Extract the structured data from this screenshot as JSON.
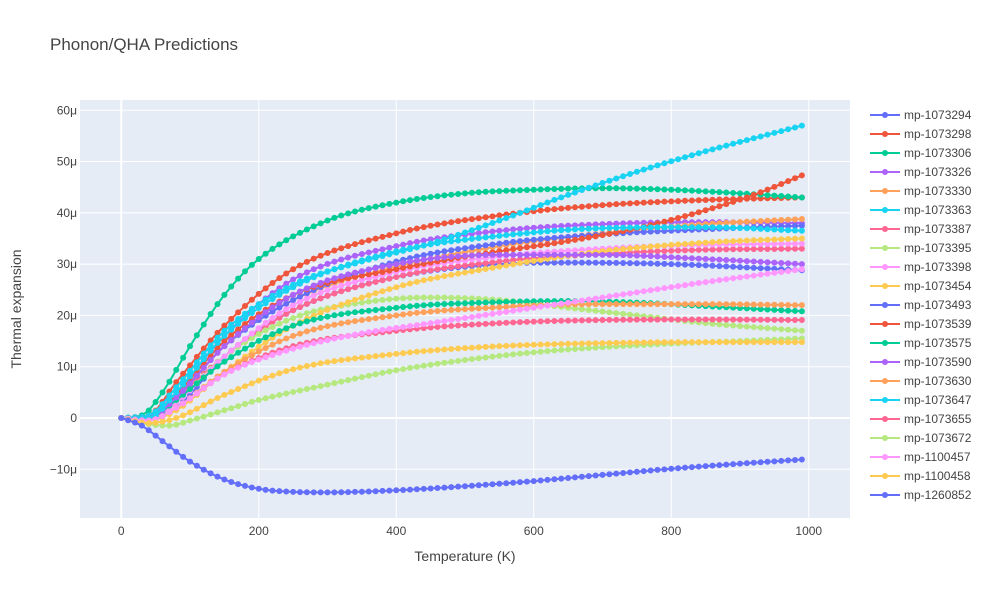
{
  "chart_data": {
    "type": "line",
    "title": "Phonon/QHA Predictions",
    "xlabel": "Temperature (K)",
    "ylabel": "Thermal expansion",
    "xlim": [
      -60,
      1060
    ],
    "ylim": [
      -1.95e-05,
      6.2e-05
    ],
    "x_ticks": [
      0,
      200,
      400,
      600,
      800,
      1000
    ],
    "x_tick_labels": [
      "0",
      "200",
      "400",
      "600",
      "800",
      "1000"
    ],
    "y_ticks": [
      -1e-05,
      0,
      1e-05,
      2e-05,
      3e-05,
      4e-05,
      5e-05,
      6e-05
    ],
    "y_tick_labels": [
      "−10μ",
      "0",
      "10μ",
      "20μ",
      "30μ",
      "40μ",
      "50μ",
      "60μ"
    ],
    "grid": true,
    "plot_bgcolor": "#e5ecf6",
    "legend_position": "right",
    "x": [
      0,
      10,
      20,
      30,
      40,
      50,
      60,
      70,
      80,
      90,
      100,
      110,
      120,
      130,
      140,
      150,
      160,
      170,
      180,
      190,
      200,
      210,
      220,
      230,
      240,
      250,
      260,
      270,
      280,
      290,
      300,
      310,
      320,
      330,
      340,
      350,
      360,
      370,
      380,
      390,
      400,
      410,
      420,
      430,
      440,
      450,
      460,
      470,
      480,
      490,
      500,
      510,
      520,
      530,
      540,
      550,
      560,
      570,
      580,
      590,
      600,
      610,
      620,
      630,
      640,
      650,
      660,
      670,
      680,
      690,
      700,
      710,
      720,
      730,
      740,
      750,
      760,
      770,
      780,
      790,
      800,
      810,
      820,
      830,
      840,
      850,
      860,
      870,
      880,
      890,
      900,
      910,
      920,
      930,
      940,
      950,
      960,
      970,
      980,
      990
    ],
    "series": [
      {
        "name": "mp-1073294",
        "color": "#636efa",
        "keypoints": [
          [
            0,
            0
          ],
          [
            40,
            -3e-07
          ],
          [
            80,
            2e-06
          ],
          [
            150,
            1.2e-05
          ],
          [
            250,
            2.1e-05
          ],
          [
            400,
            2.75e-05
          ],
          [
            550,
            3e-05
          ],
          [
            650,
            3.03e-05
          ],
          [
            800,
            3e-05
          ],
          [
            990,
            2.88e-05
          ]
        ]
      },
      {
        "name": "mp-1073298",
        "color": "#ef553b",
        "keypoints": [
          [
            0,
            0
          ],
          [
            40,
            5e-07
          ],
          [
            80,
            7e-06
          ],
          [
            150,
            1.8e-05
          ],
          [
            250,
            2.9e-05
          ],
          [
            400,
            3.6e-05
          ],
          [
            550,
            3.95e-05
          ],
          [
            700,
            4.15e-05
          ],
          [
            850,
            4.25e-05
          ],
          [
            990,
            4.3e-05
          ]
        ]
      },
      {
        "name": "mp-1073306",
        "color": "#00cc96",
        "keypoints": [
          [
            0,
            0
          ],
          [
            30,
            5e-07
          ],
          [
            60,
            5e-06
          ],
          [
            100,
            1.4e-05
          ],
          [
            150,
            2.4e-05
          ],
          [
            200,
            3.1e-05
          ],
          [
            300,
            3.85e-05
          ],
          [
            400,
            4.2e-05
          ],
          [
            500,
            4.38e-05
          ],
          [
            600,
            4.45e-05
          ],
          [
            700,
            4.48e-05
          ],
          [
            800,
            4.45e-05
          ],
          [
            900,
            4.38e-05
          ],
          [
            990,
            4.3e-05
          ]
        ]
      },
      {
        "name": "mp-1073326",
        "color": "#ab63fa",
        "keypoints": [
          [
            0,
            0
          ],
          [
            40,
            3e-07
          ],
          [
            80,
            5e-06
          ],
          [
            150,
            1.6e-05
          ],
          [
            250,
            2.7e-05
          ],
          [
            400,
            3.35e-05
          ],
          [
            550,
            3.65e-05
          ],
          [
            700,
            3.78e-05
          ],
          [
            850,
            3.82e-05
          ],
          [
            990,
            3.8e-05
          ]
        ]
      },
      {
        "name": "mp-1073330",
        "color": "#ffa15a",
        "keypoints": [
          [
            0,
            0
          ],
          [
            40,
            0.0
          ],
          [
            80,
            4e-06
          ],
          [
            150,
            1.4e-05
          ],
          [
            250,
            2.3e-05
          ],
          [
            400,
            2.95e-05
          ],
          [
            550,
            3.35e-05
          ],
          [
            700,
            3.6e-05
          ],
          [
            850,
            3.78e-05
          ],
          [
            990,
            3.88e-05
          ]
        ]
      },
      {
        "name": "mp-1073363",
        "color": "#19d3f3",
        "keypoints": [
          [
            0,
            0
          ],
          [
            40,
            5e-07
          ],
          [
            80,
            6e-06
          ],
          [
            150,
            1.7e-05
          ],
          [
            250,
            2.6e-05
          ],
          [
            350,
            3.05e-05
          ],
          [
            450,
            3.4e-05
          ],
          [
            550,
            3.85e-05
          ],
          [
            650,
            4.35e-05
          ],
          [
            750,
            4.8e-05
          ],
          [
            850,
            5.2e-05
          ],
          [
            990,
            5.7e-05
          ]
        ]
      },
      {
        "name": "mp-1073387",
        "color": "#ff6692",
        "keypoints": [
          [
            0,
            0
          ],
          [
            40,
            0.0
          ],
          [
            80,
            4e-06
          ],
          [
            150,
            1.2e-05
          ],
          [
            250,
            2.1e-05
          ],
          [
            400,
            2.75e-05
          ],
          [
            550,
            3.05e-05
          ],
          [
            700,
            3.2e-05
          ],
          [
            850,
            3.28e-05
          ],
          [
            990,
            3.3e-05
          ]
        ]
      },
      {
        "name": "mp-1073395",
        "color": "#b6e880",
        "keypoints": [
          [
            0,
            0
          ],
          [
            40,
            -3e-07
          ],
          [
            80,
            3e-06
          ],
          [
            150,
            1.2e-05
          ],
          [
            250,
            1.95e-05
          ],
          [
            350,
            2.25e-05
          ],
          [
            450,
            2.35e-05
          ],
          [
            550,
            2.3e-05
          ],
          [
            650,
            2.15e-05
          ],
          [
            750,
            2e-05
          ],
          [
            850,
            1.85e-05
          ],
          [
            990,
            1.7e-05
          ]
        ]
      },
      {
        "name": "mp-1073398",
        "color": "#ff97ff",
        "keypoints": [
          [
            0,
            0
          ],
          [
            40,
            0.0
          ],
          [
            80,
            3e-06
          ],
          [
            150,
            1.2e-05
          ],
          [
            250,
            2.2e-05
          ],
          [
            400,
            2.85e-05
          ],
          [
            550,
            3.15e-05
          ],
          [
            700,
            3.3e-05
          ],
          [
            850,
            3.38e-05
          ],
          [
            990,
            3.4e-05
          ]
        ]
      },
      {
        "name": "mp-1073454",
        "color": "#fecb52",
        "keypoints": [
          [
            0,
            0
          ],
          [
            40,
            -5e-07
          ],
          [
            80,
            1.5e-06
          ],
          [
            150,
            9e-06
          ],
          [
            250,
            1.8e-05
          ],
          [
            400,
            2.55e-05
          ],
          [
            550,
            2.95e-05
          ],
          [
            700,
            3.25e-05
          ],
          [
            850,
            3.42e-05
          ],
          [
            990,
            3.5e-05
          ]
        ]
      },
      {
        "name": "mp-1073493",
        "color": "#636efa",
        "keypoints": [
          [
            0,
            0
          ],
          [
            40,
            0.0
          ],
          [
            80,
            4e-06
          ],
          [
            150,
            1.4e-05
          ],
          [
            250,
            2.3e-05
          ],
          [
            400,
            3.05e-05
          ],
          [
            550,
            3.4e-05
          ],
          [
            700,
            3.58e-05
          ],
          [
            850,
            3.68e-05
          ],
          [
            990,
            3.75e-05
          ]
        ]
      },
      {
        "name": "mp-1073539",
        "color": "#ef553b",
        "keypoints": [
          [
            0,
            0
          ],
          [
            40,
            0.0
          ],
          [
            80,
            4.5e-06
          ],
          [
            150,
            1.5e-05
          ],
          [
            250,
            2.4e-05
          ],
          [
            400,
            2.9e-05
          ],
          [
            550,
            3.25e-05
          ],
          [
            650,
            3.45e-05
          ],
          [
            750,
            3.7e-05
          ],
          [
            850,
            4.05e-05
          ],
          [
            920,
            4.35e-05
          ],
          [
            990,
            4.73e-05
          ]
        ]
      },
      {
        "name": "mp-1073575",
        "color": "#00cc96",
        "keypoints": [
          [
            0,
            0
          ],
          [
            40,
            0.0
          ],
          [
            80,
            3.5e-06
          ],
          [
            150,
            1.1e-05
          ],
          [
            250,
            1.8e-05
          ],
          [
            400,
            2.15e-05
          ],
          [
            550,
            2.26e-05
          ],
          [
            650,
            2.28e-05
          ],
          [
            750,
            2.25e-05
          ],
          [
            850,
            2.18e-05
          ],
          [
            990,
            2.08e-05
          ]
        ]
      },
      {
        "name": "mp-1073590",
        "color": "#ab63fa",
        "keypoints": [
          [
            0,
            0
          ],
          [
            40,
            0.0
          ],
          [
            80,
            4e-06
          ],
          [
            150,
            1.4e-05
          ],
          [
            250,
            2.4e-05
          ],
          [
            400,
            3e-05
          ],
          [
            550,
            3.18e-05
          ],
          [
            700,
            3.18e-05
          ],
          [
            850,
            3.1e-05
          ],
          [
            990,
            3e-05
          ]
        ]
      },
      {
        "name": "mp-1073630",
        "color": "#ffa15a",
        "keypoints": [
          [
            0,
            0
          ],
          [
            40,
            -5e-07
          ],
          [
            80,
            2e-06
          ],
          [
            150,
            9e-06
          ],
          [
            250,
            1.6e-05
          ],
          [
            400,
            2e-05
          ],
          [
            550,
            2.16e-05
          ],
          [
            700,
            2.22e-05
          ],
          [
            850,
            2.22e-05
          ],
          [
            990,
            2.2e-05
          ]
        ]
      },
      {
        "name": "mp-1073647",
        "color": "#19d3f3",
        "keypoints": [
          [
            0,
            0
          ],
          [
            40,
            0.0
          ],
          [
            80,
            5e-06
          ],
          [
            150,
            1.6e-05
          ],
          [
            250,
            2.55e-05
          ],
          [
            400,
            3.25e-05
          ],
          [
            550,
            3.55e-05
          ],
          [
            700,
            3.7e-05
          ],
          [
            850,
            3.72e-05
          ],
          [
            990,
            3.65e-05
          ]
        ]
      },
      {
        "name": "mp-1073655",
        "color": "#ff6692",
        "keypoints": [
          [
            0,
            0
          ],
          [
            40,
            -5e-07
          ],
          [
            80,
            2e-06
          ],
          [
            150,
            8.5e-06
          ],
          [
            250,
            1.4e-05
          ],
          [
            400,
            1.7e-05
          ],
          [
            550,
            1.85e-05
          ],
          [
            700,
            1.91e-05
          ],
          [
            850,
            1.92e-05
          ],
          [
            990,
            1.91e-05
          ]
        ]
      },
      {
        "name": "mp-1073672",
        "color": "#b6e880",
        "keypoints": [
          [
            0,
            0
          ],
          [
            40,
            -1.2e-06
          ],
          [
            70,
            -1.5e-06
          ],
          [
            100,
            -5e-07
          ],
          [
            150,
            1.5e-06
          ],
          [
            200,
            3.5e-06
          ],
          [
            300,
            6.5e-06
          ],
          [
            400,
            9.3e-06
          ],
          [
            500,
            1.13e-05
          ],
          [
            600,
            1.28e-05
          ],
          [
            700,
            1.38e-05
          ],
          [
            800,
            1.45e-05
          ],
          [
            900,
            1.5e-05
          ],
          [
            990,
            1.55e-05
          ]
        ]
      },
      {
        "name": "mp-1100457",
        "color": "#ff97ff",
        "keypoints": [
          [
            0,
            0
          ],
          [
            40,
            -5e-07
          ],
          [
            80,
            2e-06
          ],
          [
            150,
            8.5e-06
          ],
          [
            250,
            1.35e-05
          ],
          [
            350,
            1.65e-05
          ],
          [
            450,
            1.85e-05
          ],
          [
            550,
            2.05e-05
          ],
          [
            650,
            2.25e-05
          ],
          [
            750,
            2.45e-05
          ],
          [
            850,
            2.65e-05
          ],
          [
            990,
            2.9e-05
          ]
        ]
      },
      {
        "name": "mp-1100458",
        "color": "#fecb52",
        "keypoints": [
          [
            0,
            0
          ],
          [
            40,
            -1e-06
          ],
          [
            80,
            0.0
          ],
          [
            150,
            4.5e-06
          ],
          [
            250,
            9.5e-06
          ],
          [
            400,
            1.25e-05
          ],
          [
            550,
            1.4e-05
          ],
          [
            700,
            1.46e-05
          ],
          [
            850,
            1.48e-05
          ],
          [
            990,
            1.48e-05
          ]
        ]
      },
      {
        "name": "mp-1260852",
        "color": "#636efa",
        "keypoints": [
          [
            0,
            0
          ],
          [
            30,
            -1.5e-06
          ],
          [
            60,
            -4.5e-06
          ],
          [
            100,
            -8.5e-06
          ],
          [
            150,
            -1.2e-05
          ],
          [
            200,
            -1.38e-05
          ],
          [
            250,
            -1.44e-05
          ],
          [
            300,
            -1.45e-05
          ],
          [
            400,
            -1.41e-05
          ],
          [
            500,
            -1.33e-05
          ],
          [
            600,
            -1.23e-05
          ],
          [
            700,
            -1.11e-05
          ],
          [
            800,
            -9.9e-06
          ],
          [
            900,
            -8.9e-06
          ],
          [
            990,
            -8.1e-06
          ]
        ]
      }
    ]
  }
}
